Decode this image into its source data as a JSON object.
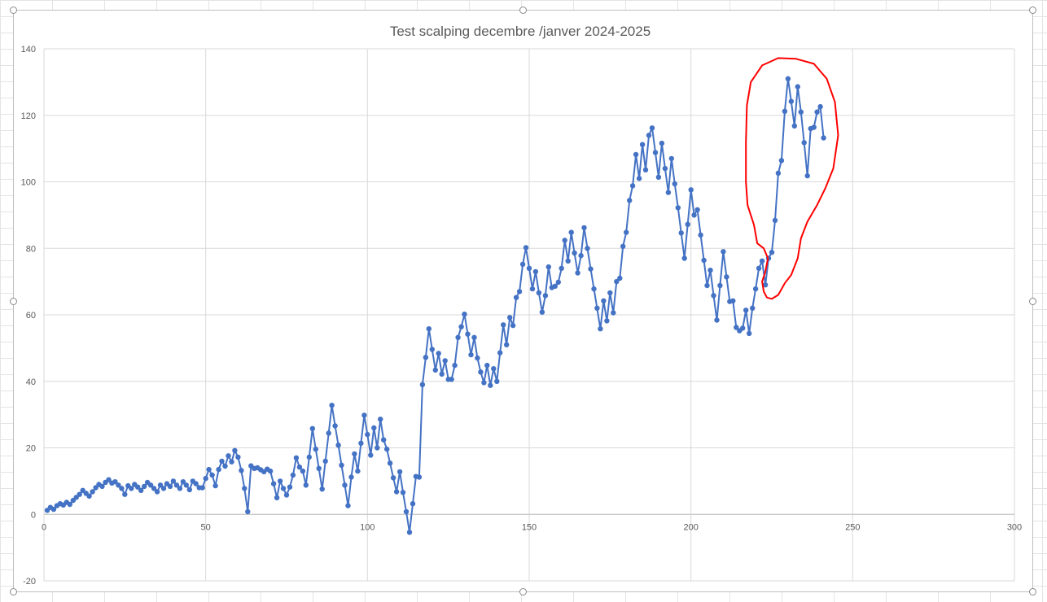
{
  "chart_data": {
    "type": "line",
    "title": "Test scalping decembre /janver 2024-2025",
    "xlabel": "",
    "ylabel": "",
    "xlim": [
      0,
      300
    ],
    "ylim": [
      -20,
      140
    ],
    "xticks": [
      0,
      50,
      100,
      150,
      200,
      250,
      300
    ],
    "yticks": [
      -20,
      0,
      20,
      40,
      60,
      80,
      100,
      120,
      140
    ],
    "grid": true,
    "legend": "none",
    "series_color": "#4472C4",
    "annotation_color": "#FF0000",
    "annotation": "red hand-drawn circle around the final peak (x 222-241)",
    "series": [
      {
        "values": [
          [
            1,
            1.2
          ],
          [
            2,
            2.1
          ],
          [
            3,
            1.5
          ],
          [
            4,
            2.6
          ],
          [
            5,
            3.2
          ],
          [
            6,
            2.8
          ],
          [
            7,
            3.6
          ],
          [
            8,
            3.0
          ],
          [
            9,
            4.2
          ],
          [
            10,
            5.1
          ],
          [
            11,
            6.0
          ],
          [
            12,
            7.2
          ],
          [
            13,
            6.3
          ],
          [
            14,
            5.5
          ],
          [
            15,
            6.8
          ],
          [
            16,
            8.0
          ],
          [
            17,
            9.0
          ],
          [
            18,
            8.4
          ],
          [
            19,
            9.6
          ],
          [
            20,
            10.4
          ],
          [
            21,
            9.4
          ],
          [
            22,
            9.8
          ],
          [
            23,
            8.8
          ],
          [
            24,
            7.8
          ],
          [
            25,
            6.0
          ],
          [
            26,
            8.6
          ],
          [
            27,
            7.8
          ],
          [
            28,
            9.0
          ],
          [
            29,
            8.2
          ],
          [
            30,
            7.2
          ],
          [
            31,
            8.4
          ],
          [
            32,
            9.6
          ],
          [
            33,
            8.8
          ],
          [
            34,
            7.8
          ],
          [
            35,
            6.8
          ],
          [
            36,
            8.8
          ],
          [
            37,
            7.8
          ],
          [
            38,
            9.2
          ],
          [
            39,
            8.4
          ],
          [
            40,
            10.0
          ],
          [
            41,
            8.8
          ],
          [
            42,
            7.8
          ],
          [
            43,
            9.8
          ],
          [
            44,
            8.8
          ],
          [
            45,
            7.4
          ],
          [
            46,
            10.0
          ],
          [
            47,
            9.2
          ],
          [
            48,
            8.0
          ],
          [
            49,
            8.0
          ],
          [
            50,
            10.8
          ],
          [
            51,
            13.5
          ],
          [
            52,
            11.8
          ],
          [
            53,
            8.6
          ],
          [
            54,
            13.5
          ],
          [
            55,
            16.0
          ],
          [
            56,
            14.5
          ],
          [
            57,
            17.6
          ],
          [
            58,
            15.8
          ],
          [
            59,
            19.2
          ],
          [
            60,
            17.2
          ],
          [
            61,
            13.2
          ],
          [
            62,
            7.8
          ],
          [
            63,
            0.8
          ],
          [
            64,
            14.6
          ],
          [
            65,
            13.8
          ],
          [
            66,
            14.0
          ],
          [
            67,
            13.4
          ],
          [
            68,
            12.8
          ],
          [
            69,
            13.6
          ],
          [
            70,
            13.0
          ],
          [
            71,
            9.2
          ],
          [
            72,
            5.0
          ],
          [
            73,
            10.0
          ],
          [
            74,
            7.8
          ],
          [
            75,
            5.8
          ],
          [
            76,
            8.2
          ],
          [
            77,
            11.8
          ],
          [
            78,
            17.0
          ],
          [
            79,
            14.2
          ],
          [
            80,
            13.0
          ],
          [
            81,
            8.8
          ],
          [
            82,
            17.2
          ],
          [
            83,
            25.8
          ],
          [
            84,
            19.6
          ],
          [
            85,
            13.8
          ],
          [
            86,
            7.6
          ],
          [
            87,
            16.0
          ],
          [
            88,
            24.4
          ],
          [
            89,
            32.8
          ],
          [
            90,
            26.6
          ],
          [
            91,
            20.8
          ],
          [
            92,
            14.8
          ],
          [
            93,
            8.8
          ],
          [
            94,
            2.6
          ],
          [
            95,
            11.2
          ],
          [
            96,
            18.2
          ],
          [
            97,
            13.0
          ],
          [
            98,
            21.4
          ],
          [
            99,
            29.8
          ],
          [
            100,
            24.0
          ],
          [
            101,
            17.8
          ],
          [
            102,
            26.0
          ],
          [
            103,
            20.0
          ],
          [
            104,
            28.6
          ],
          [
            105,
            22.4
          ],
          [
            106,
            19.6
          ],
          [
            107,
            15.4
          ],
          [
            108,
            11.0
          ],
          [
            109,
            6.8
          ],
          [
            110,
            12.8
          ],
          [
            111,
            6.6
          ],
          [
            112,
            0.8
          ],
          [
            113,
            -5.4
          ],
          [
            114,
            3.2
          ],
          [
            115,
            11.4
          ],
          [
            116,
            11.2
          ],
          [
            117,
            39.0
          ],
          [
            118,
            47.2
          ],
          [
            119,
            55.8
          ],
          [
            120,
            49.6
          ],
          [
            121,
            43.4
          ],
          [
            122,
            48.4
          ],
          [
            123,
            42.2
          ],
          [
            124,
            46.2
          ],
          [
            125,
            40.6
          ],
          [
            126,
            40.6
          ],
          [
            127,
            44.8
          ],
          [
            128,
            53.2
          ],
          [
            129,
            56.4
          ],
          [
            130,
            60.2
          ],
          [
            131,
            54.2
          ],
          [
            132,
            48.0
          ],
          [
            133,
            53.2
          ],
          [
            134,
            47.0
          ],
          [
            135,
            42.8
          ],
          [
            136,
            39.6
          ],
          [
            137,
            44.8
          ],
          [
            138,
            38.8
          ],
          [
            139,
            43.8
          ],
          [
            140,
            40.0
          ],
          [
            141,
            48.6
          ],
          [
            142,
            57.0
          ],
          [
            143,
            51.0
          ],
          [
            144,
            59.2
          ],
          [
            145,
            56.8
          ],
          [
            146,
            65.2
          ],
          [
            147,
            67.0
          ],
          [
            148,
            75.2
          ],
          [
            149,
            80.2
          ],
          [
            150,
            74.0
          ],
          [
            151,
            67.8
          ],
          [
            152,
            73.0
          ],
          [
            153,
            66.6
          ],
          [
            154,
            60.8
          ],
          [
            155,
            65.8
          ],
          [
            156,
            74.4
          ],
          [
            157,
            68.2
          ],
          [
            158,
            68.6
          ],
          [
            159,
            69.8
          ],
          [
            160,
            74.0
          ],
          [
            161,
            82.4
          ],
          [
            162,
            76.2
          ],
          [
            163,
            84.8
          ],
          [
            164,
            78.6
          ],
          [
            165,
            72.6
          ],
          [
            166,
            77.8
          ],
          [
            167,
            86.2
          ],
          [
            168,
            80.0
          ],
          [
            169,
            73.8
          ],
          [
            170,
            67.8
          ],
          [
            171,
            62.0
          ],
          [
            172,
            55.8
          ],
          [
            173,
            64.2
          ],
          [
            174,
            58.2
          ],
          [
            175,
            66.6
          ],
          [
            176,
            60.6
          ],
          [
            177,
            70.0
          ],
          [
            178,
            71.0
          ],
          [
            179,
            80.6
          ],
          [
            180,
            84.8
          ],
          [
            181,
            94.4
          ],
          [
            182,
            98.8
          ],
          [
            183,
            108.2
          ],
          [
            184,
            101.0
          ],
          [
            185,
            111.2
          ],
          [
            186,
            103.6
          ],
          [
            187,
            114.0
          ],
          [
            188,
            116.2
          ],
          [
            189,
            108.8
          ],
          [
            190,
            101.4
          ],
          [
            191,
            111.6
          ],
          [
            192,
            104.0
          ],
          [
            193,
            96.8
          ],
          [
            194,
            107.0
          ],
          [
            195,
            99.4
          ],
          [
            196,
            92.2
          ],
          [
            197,
            84.6
          ],
          [
            198,
            77.0
          ],
          [
            199,
            87.2
          ],
          [
            200,
            97.6
          ],
          [
            201,
            90.0
          ],
          [
            202,
            91.6
          ],
          [
            203,
            84.0
          ],
          [
            204,
            76.4
          ],
          [
            205,
            68.8
          ],
          [
            206,
            73.4
          ],
          [
            207,
            65.8
          ],
          [
            208,
            58.4
          ],
          [
            209,
            68.8
          ],
          [
            210,
            79.0
          ],
          [
            211,
            71.4
          ],
          [
            212,
            64.0
          ],
          [
            213,
            64.2
          ],
          [
            214,
            56.2
          ],
          [
            215,
            55.2
          ],
          [
            216,
            56.0
          ],
          [
            217,
            61.4
          ],
          [
            218,
            54.4
          ],
          [
            219,
            62.0
          ],
          [
            220,
            67.8
          ],
          [
            221,
            74.0
          ],
          [
            222,
            76.2
          ],
          [
            223,
            69.0
          ],
          [
            224,
            77.0
          ],
          [
            225,
            78.8
          ],
          [
            226,
            88.4
          ],
          [
            227,
            102.6
          ],
          [
            228,
            106.4
          ],
          [
            229,
            121.2
          ],
          [
            230,
            131.0
          ],
          [
            231,
            124.2
          ],
          [
            232,
            116.8
          ],
          [
            233,
            128.6
          ],
          [
            234,
            121.0
          ],
          [
            235,
            111.8
          ],
          [
            236,
            101.8
          ],
          [
            237,
            116.0
          ],
          [
            238,
            116.4
          ],
          [
            239,
            121.0
          ],
          [
            240,
            122.6
          ],
          [
            241,
            113.2
          ]
        ]
      }
    ]
  }
}
